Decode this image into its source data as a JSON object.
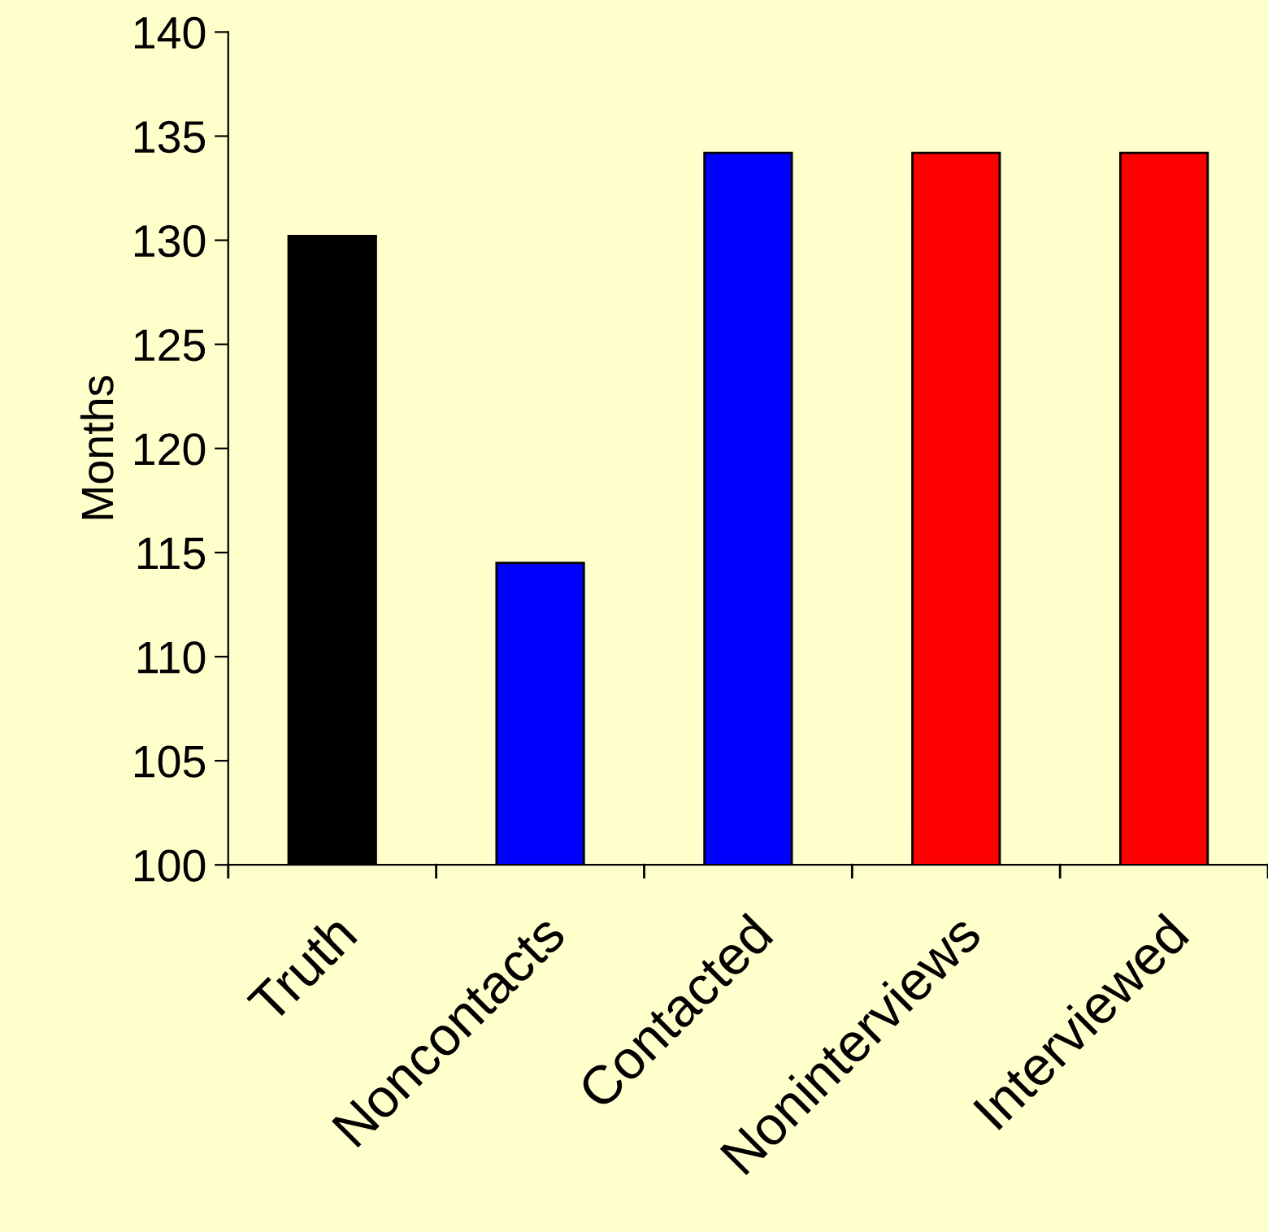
{
  "chart_data": {
    "type": "bar",
    "ylabel": "Months",
    "categories": [
      "Truth",
      "Noncontacts",
      "Contacted",
      "Noninterviews",
      "Interviewed"
    ],
    "values": [
      130.2,
      114.5,
      134.2,
      134.2,
      134.2
    ],
    "colors": [
      "#000000",
      "#0000ff",
      "#0000ff",
      "#ff0000",
      "#ff0000"
    ],
    "ylim": [
      100,
      140
    ],
    "yticks": [
      100,
      105,
      110,
      115,
      120,
      125,
      130,
      135,
      140
    ],
    "grid": false,
    "legend": false
  }
}
